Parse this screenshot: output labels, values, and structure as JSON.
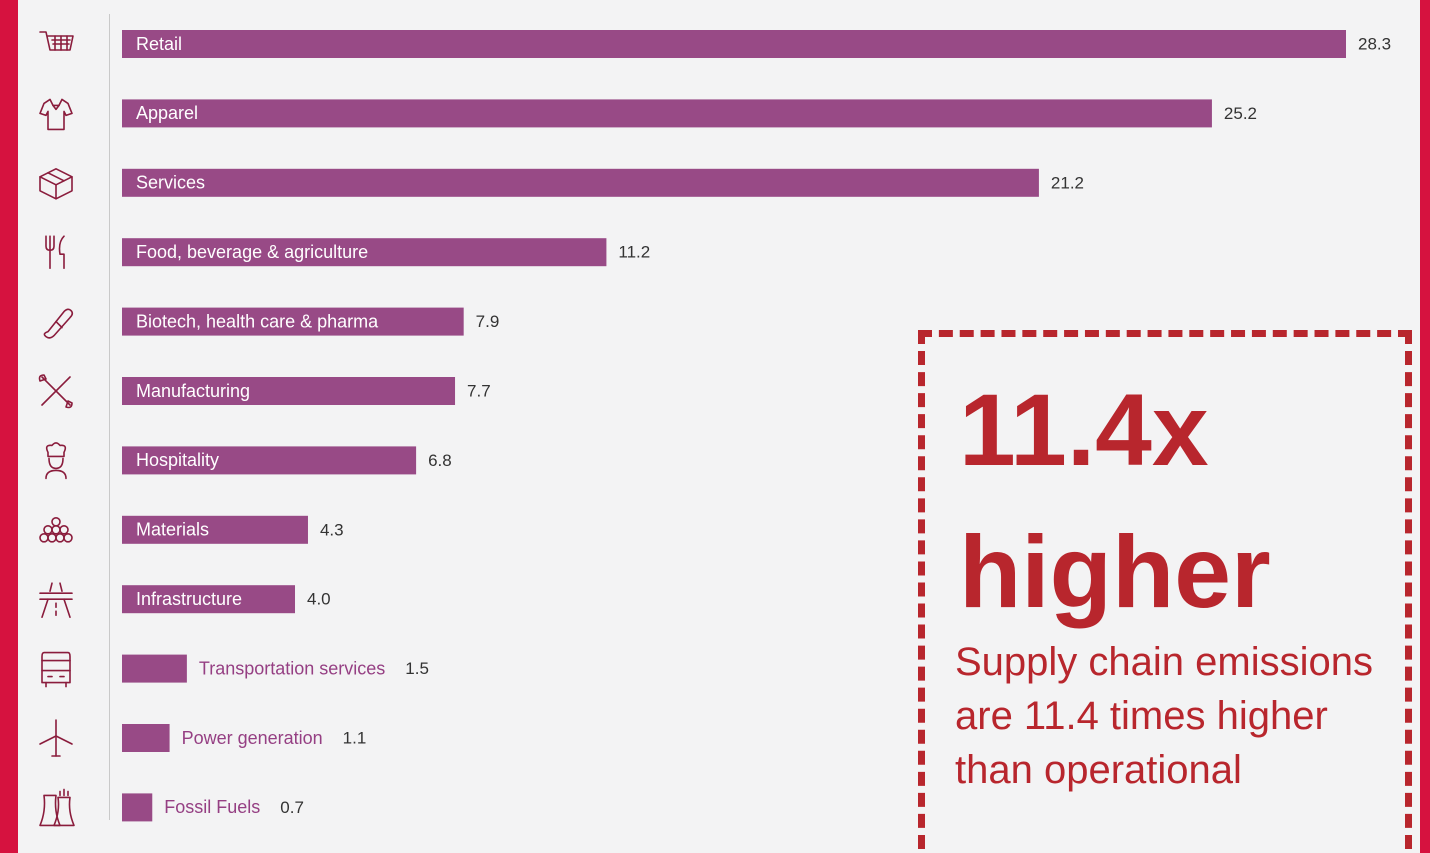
{
  "chart_data": {
    "type": "bar",
    "orientation": "horizontal",
    "categories": [
      "Retail",
      "Apparel",
      "Services",
      "Food, beverage & agriculture",
      "Biotech, health care & pharma",
      "Manufacturing",
      "Hospitality",
      "Materials",
      "Infrastructure",
      "Transportation services",
      "Power generation",
      "Fossil Fuels"
    ],
    "values": [
      28.3,
      25.2,
      21.2,
      11.2,
      7.9,
      7.7,
      6.8,
      4.3,
      4.0,
      1.5,
      1.1,
      0.7
    ],
    "value_labels": [
      "28.3",
      "25.2",
      "21.2",
      "11.2",
      "7.9",
      "7.7",
      "6.8",
      "4.3",
      "4.0",
      "1.5",
      "1.1",
      "0.7"
    ],
    "icons": [
      "shopping-cart-icon",
      "shirt-icon",
      "open-box-icon",
      "fork-knife-icon",
      "pill-icon",
      "wrench-screwdriver-icon",
      "chef-icon",
      "stacked-pipes-icon",
      "road-icon",
      "bus-icon",
      "wind-turbine-icon",
      "cooling-tower-icon"
    ],
    "xlim": [
      0,
      28.3
    ],
    "grid": false,
    "bar_color": "#984a86"
  },
  "callout": {
    "headline": "11.4x higher",
    "text": "Supply chain emissions are 11.4 times higher than operational",
    "color": "#b8262d"
  },
  "colors": {
    "frame": "#d6123f",
    "background": "#f3f3f4",
    "bar": "#984a86",
    "icon": "#8a1c3c"
  }
}
